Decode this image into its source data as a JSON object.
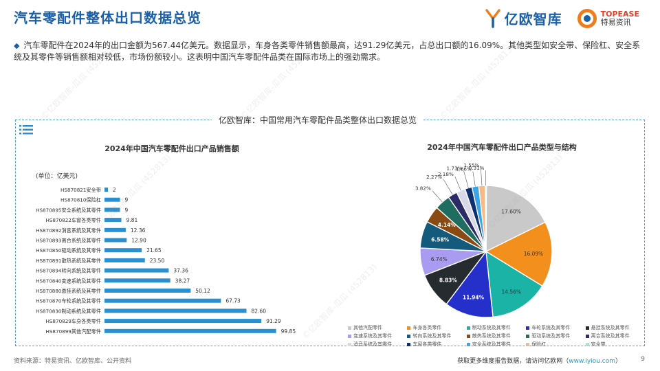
{
  "page": {
    "title": "汽车零配件整体出口数据总览",
    "intro": "汽车零配件在2024年的出口金额为567.44亿美元。数据显示，车身各类零件销售额最高，达91.29亿美元，占总出口额的16.09%。其他类型如安全带、保险杠、安全系统及其零件等销售额相对较低，市场份额较小。这表明中国汽车零配件品类在国际市场上的强劲需求。",
    "panel_title": "亿欧智库：中国常用汽车零配件品类整体出口数据总览",
    "logo_yiou": "亿欧智库",
    "logo_topease_en": "TOPEASE",
    "logo_topease_cn": "特易资讯",
    "source": "资料来源：特易资讯、亿欧智库、公开资料",
    "footer_prefix": "获取更多维度报告数据，请访问亿欧网（",
    "footer_link": "www.iyiou.com",
    "footer_suffix": "）",
    "page_number": "9",
    "watermark": "©亿欧智库-瓜瓜 (452813)"
  },
  "colors": {
    "title": "#1b5fa8",
    "bar": "#2a8fd0",
    "panel_border": "#4ba0d8"
  },
  "chart_data": [
    {
      "type": "bar",
      "orientation": "horizontal",
      "title": "2024年中国汽车零配件出口产品销售额",
      "unit_label": "(单位：亿美元)",
      "categories": [
        "HS870821安全带",
        "HS870810保险杠",
        "HS870895安全系统及其零件",
        "HS870822车窗各类零件",
        "HS870892消音系统及其零件",
        "HS870893离合系统及其零件",
        "HS870850驱动系统及其零件",
        "HS870891散热系统及其零件",
        "HS870894转向系统及其零件",
        "HS870840变速系统及其零件",
        "HS870880悬挂系统及其零件",
        "HS870870车轮系统及其零件",
        "HS870830制动系统及其零件",
        "HS870829车身各类零件",
        "HS870899其他汽配零件"
      ],
      "values": [
        2,
        9,
        9,
        9.81,
        12.36,
        12.9,
        21.65,
        23.5,
        37.36,
        38.27,
        50.12,
        67.73,
        82.6,
        91.29,
        99.85
      ],
      "value_labels": [
        "2",
        "9",
        "9",
        "9.81",
        "12.36",
        "12.90",
        "21.65",
        "23.50",
        "37.36",
        "38.27",
        "50.12",
        "67.73",
        "82.60",
        "91.29",
        "99.85"
      ]
    },
    {
      "type": "pie",
      "title": "2024年中国汽车零配件出口产品类型与结构",
      "slices": [
        {
          "name": "其他汽配零件",
          "value": 17.6,
          "label": "17.60%",
          "color": "#c9c9c9"
        },
        {
          "name": "车身各类零件",
          "value": 16.09,
          "label": "16.09%",
          "color": "#f3901d"
        },
        {
          "name": "制动系统及其零件",
          "value": 14.56,
          "label": "14.56%",
          "color": "#1ab3a6"
        },
        {
          "name": "车轮系统及其零件",
          "value": 11.94,
          "label": "11.94%",
          "color": "#2430c9"
        },
        {
          "name": "悬挂系统及其零件",
          "value": 8.83,
          "label": "8.83%",
          "color": "#262b30"
        },
        {
          "name": "变速系统及其零件",
          "value": 6.74,
          "label": "6.74%",
          "color": "#a99cf0"
        },
        {
          "name": "转向系统及其零件",
          "value": 6.58,
          "label": "6.58%",
          "color": "#135a7c"
        },
        {
          "name": "散热系统及其零件",
          "value": 4.14,
          "label": "4.14%",
          "color": "#8a4a13"
        },
        {
          "name": "驱动系统及其零件",
          "value": 3.82,
          "label": "3.82%",
          "color": "#1f6d61"
        },
        {
          "name": "离合系统及其零件",
          "value": 2.27,
          "label": "2.27%",
          "color": "#2c2b67"
        },
        {
          "name": "消音系统及其零件",
          "value": 2.18,
          "label": "2.18%",
          "color": "#d8d8e8"
        },
        {
          "name": "车窗各类零件",
          "value": 1.73,
          "label": "1.73%",
          "color": "#0f2f73"
        },
        {
          "name": "安全系统及其零件",
          "value": 1.66,
          "label": "1.66%",
          "color": "#3aa6e6"
        },
        {
          "name": "保险杠",
          "value": 1.55,
          "label": "1.55%",
          "color": "#f7b98a"
        },
        {
          "name": "安全带",
          "value": 0.31,
          "label": "0.31%",
          "color": "#a8e4c8"
        }
      ],
      "legend_placement": "bottom"
    }
  ]
}
